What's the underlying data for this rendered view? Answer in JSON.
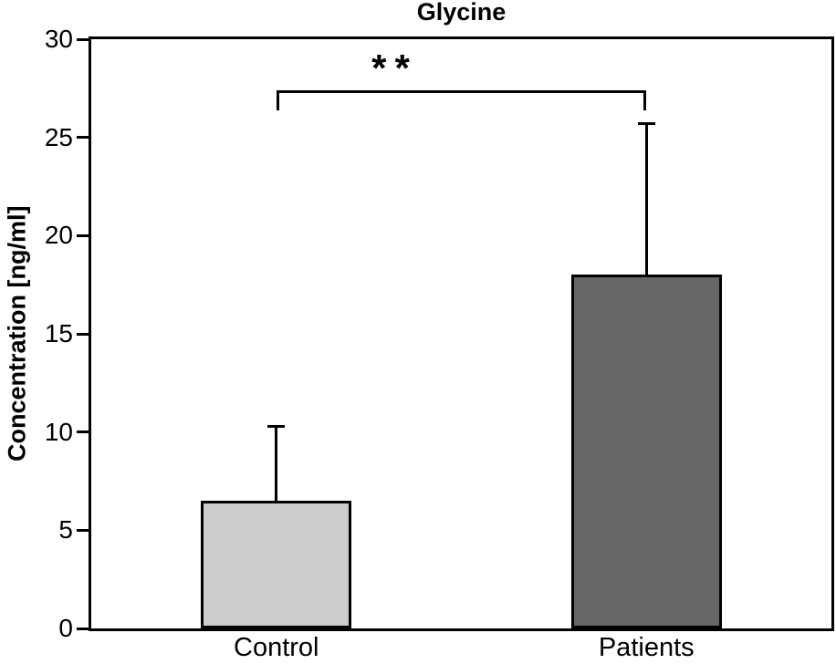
{
  "chart_data": {
    "type": "bar",
    "title": "Glycine",
    "xlabel": "",
    "ylabel": "Concentration [ng/ml]",
    "categories": [
      "Control",
      "Patients"
    ],
    "values": [
      6.5,
      18.0
    ],
    "error_up": [
      3.8,
      7.7
    ],
    "error_top_absolute": [
      10.3,
      25.7
    ],
    "ylim": [
      0,
      30
    ],
    "yticks": [
      0,
      5,
      10,
      15,
      20,
      25,
      30
    ],
    "grid": false,
    "legend_position": "none",
    "bar_colors": [
      "#cdcdcd",
      "#666666"
    ],
    "bar_edge_color": "#000000",
    "axis_color": "#000000",
    "significance": {
      "label": "**",
      "between": [
        "Control",
        "Patients"
      ],
      "bracket_y": 27.4
    }
  }
}
